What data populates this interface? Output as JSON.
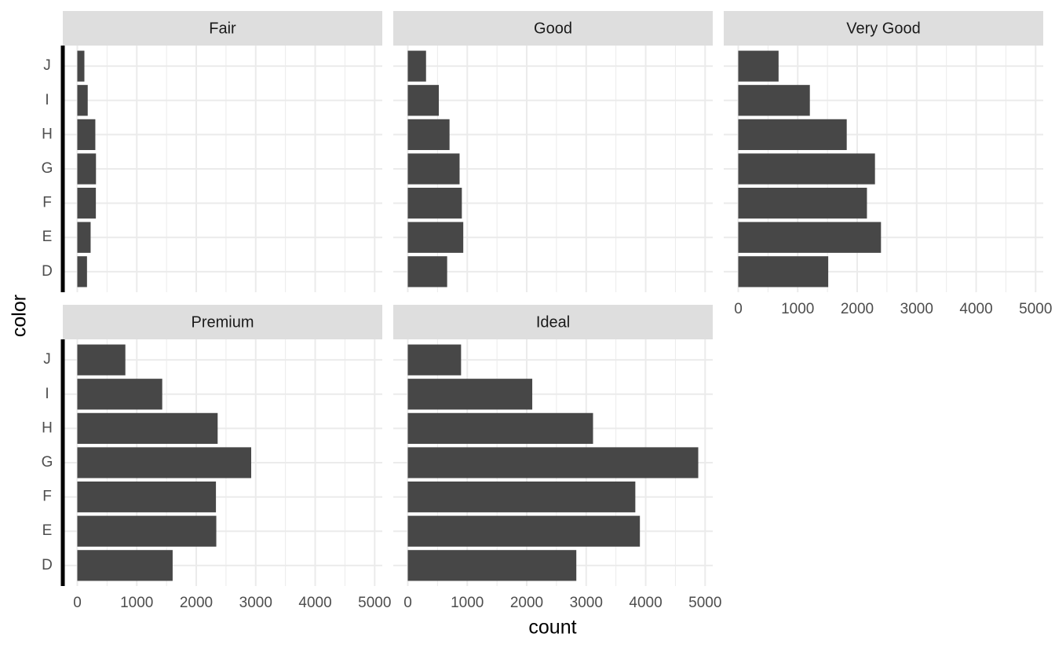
{
  "chart_data": {
    "type": "bar",
    "orientation": "horizontal",
    "x_label": "count",
    "y_label": "color",
    "categories": [
      "D",
      "E",
      "F",
      "G",
      "H",
      "I",
      "J"
    ],
    "xlim": [
      -244,
      5128
    ],
    "xticks": [
      0,
      1000,
      2000,
      3000,
      4000,
      5000
    ],
    "grid": true,
    "color": "#474747",
    "facets": [
      {
        "title": "Fair",
        "values": [
          163,
          224,
          312,
          314,
          303,
          175,
          119
        ]
      },
      {
        "title": "Good",
        "values": [
          662,
          933,
          909,
          871,
          702,
          522,
          307
        ]
      },
      {
        "title": "Very Good",
        "values": [
          1513,
          2400,
          2164,
          2299,
          1824,
          1204,
          678
        ]
      },
      {
        "title": "Premium",
        "values": [
          1603,
          2337,
          2331,
          2924,
          2360,
          1428,
          808
        ]
      },
      {
        "title": "Ideal",
        "values": [
          2834,
          3903,
          3826,
          4884,
          3115,
          2093,
          896
        ]
      }
    ]
  }
}
